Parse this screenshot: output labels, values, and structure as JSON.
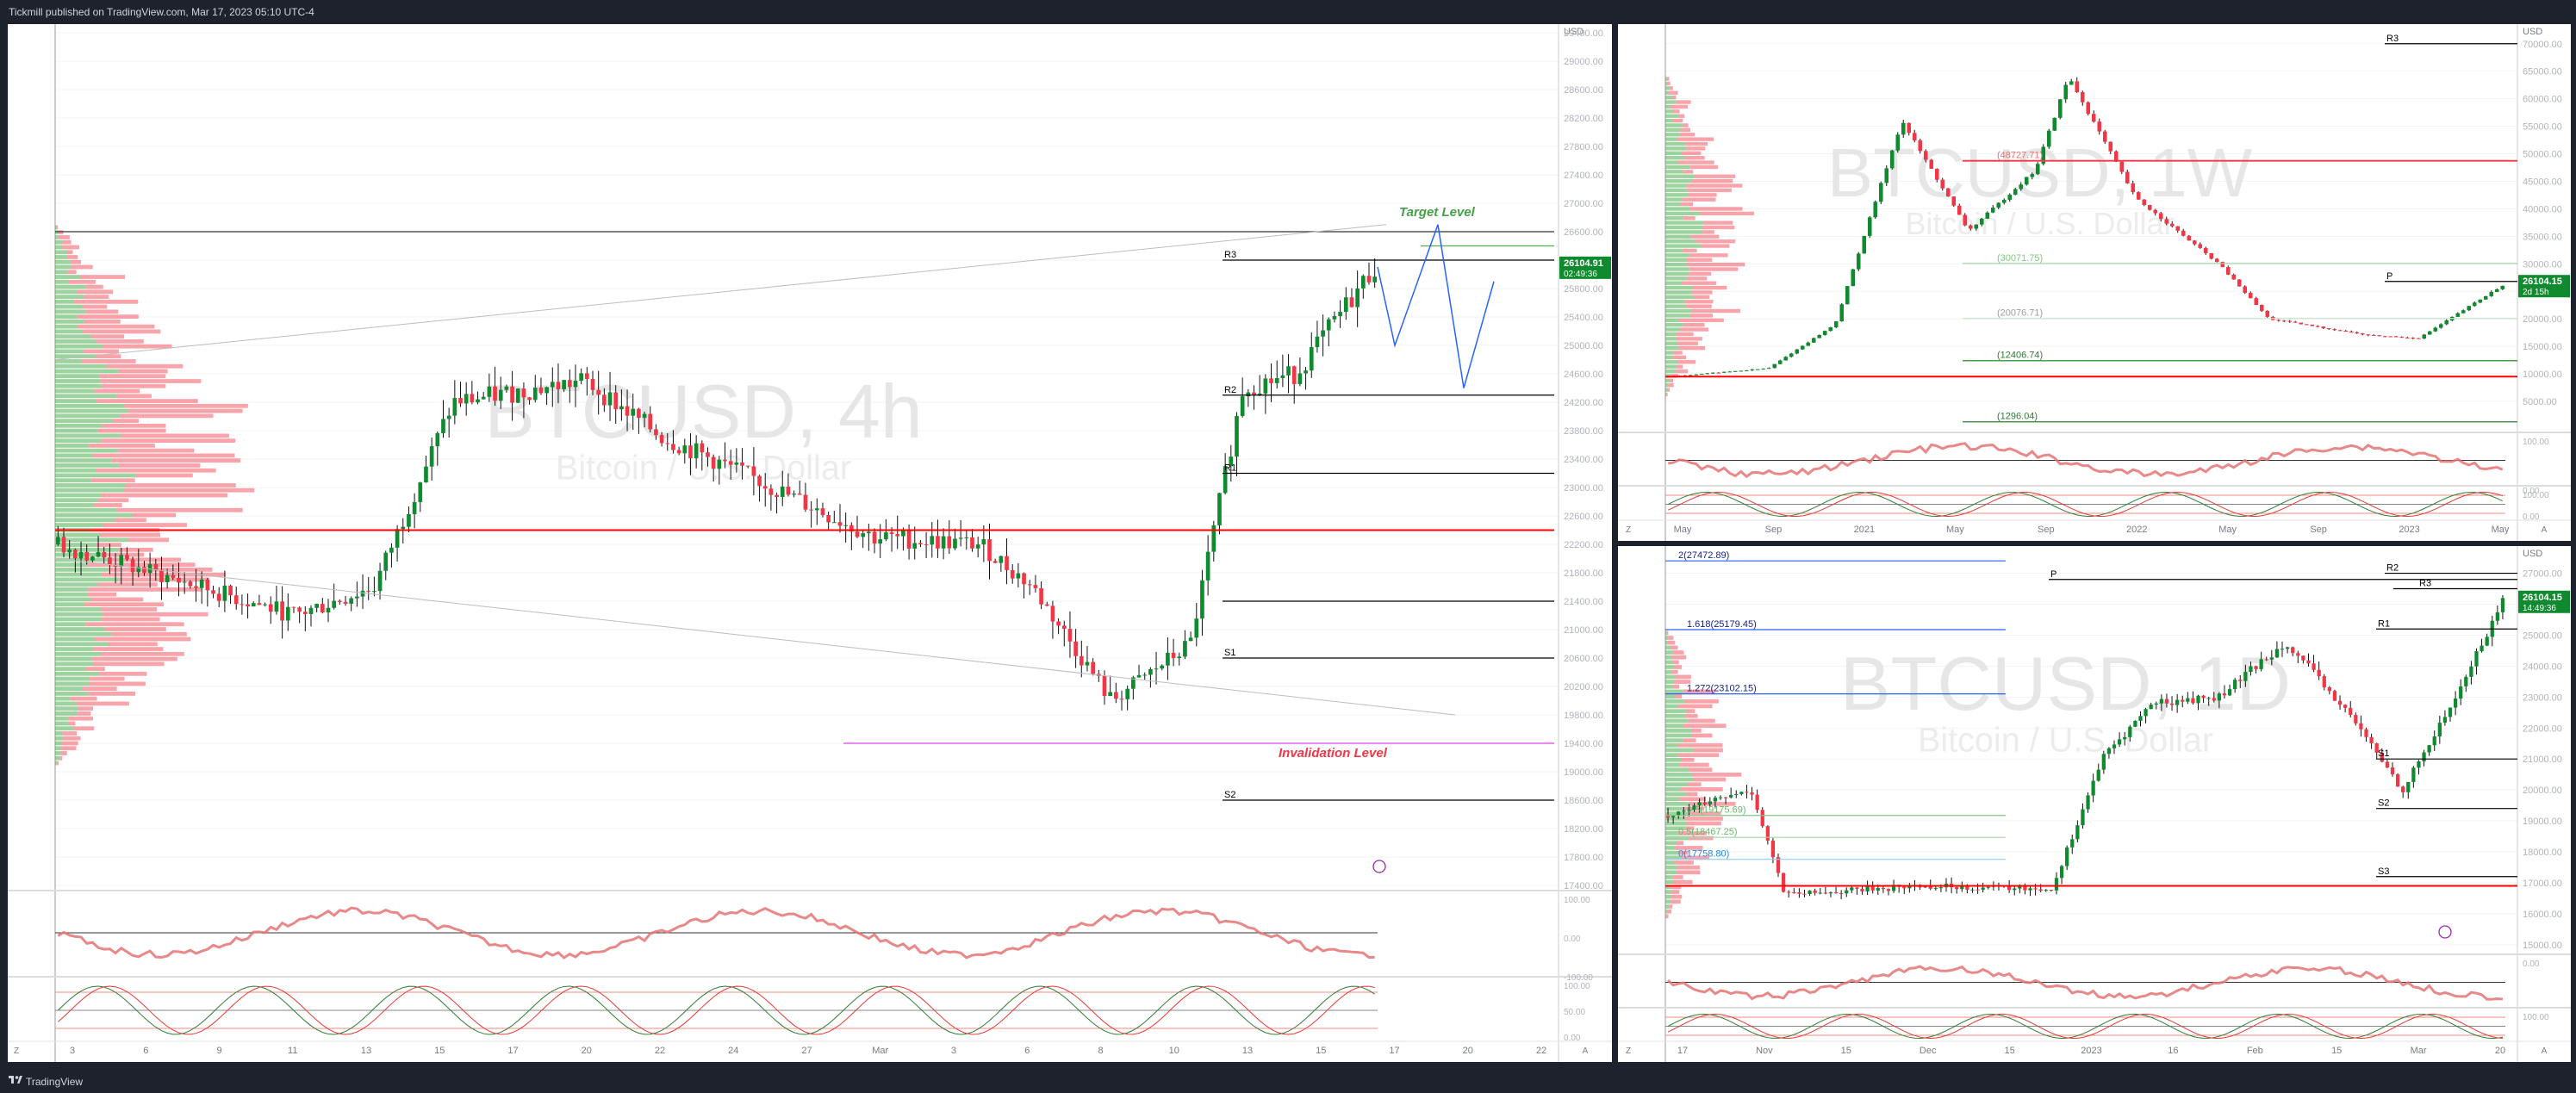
{
  "header": {
    "publisher": "Tickmill published on TradingView.com, Mar 17, 2023 05:10 UTC-4"
  },
  "footer": {
    "brand": "TradingView",
    "logo_icon": "tradingview-logo-icon"
  },
  "colors": {
    "up": "#089981",
    "up_volume": "#4caf50",
    "down": "#f23645",
    "price_tag": "#0f8a2f",
    "target": "#43a047",
    "invalidation": "#f23645",
    "projection": "#2962ff",
    "pivot_line": "#000000",
    "support_red": "#ff0000",
    "magenta": "#e040fb"
  },
  "charts": [
    {
      "id": "main",
      "watermark_symbol": "BTCUSD, 4h",
      "watermark_name": "Bitcoin / U.S. Dollar",
      "currency": "USD",
      "price_label": "26104.91",
      "countdown": "02:49:36",
      "annotations": [
        "Target Level",
        "Invalidation Level"
      ],
      "pivot_labels": [
        "R3",
        "R2",
        "R1",
        "S1",
        "S2"
      ],
      "y_ticks": [
        "29400.00",
        "29000.00",
        "28600.00",
        "28200.00",
        "27800.00",
        "27400.00",
        "27000.00",
        "26600.00",
        "26200.00",
        "25800.00",
        "25400.00",
        "25000.00",
        "24600.00",
        "24200.00",
        "23800.00",
        "23400.00",
        "23000.00",
        "22600.00",
        "22200.00",
        "21800.00",
        "21400.00",
        "21000.00",
        "20600.00",
        "20200.00",
        "19800.00",
        "19400.00",
        "19000.00",
        "18600.00",
        "18200.00",
        "17800.00",
        "17400.00"
      ],
      "x_ticks": [
        "3",
        "6",
        "9",
        "11",
        "13",
        "15",
        "17",
        "20",
        "22",
        "24",
        "27",
        "Mar",
        "3",
        "6",
        "8",
        "10",
        "13",
        "15",
        "17",
        "20",
        "22"
      ],
      "rsi_ticks": [
        "100.00",
        "0.00",
        "-100.00"
      ],
      "stoch_ticks": [
        "100.00",
        "50.00",
        "0.00"
      ],
      "z_label": "Z",
      "a_label": "A"
    },
    {
      "id": "weekly",
      "watermark_symbol": "BTCUSD, 1W",
      "watermark_name": "Bitcoin / U.S. Dollar",
      "currency": "USD",
      "price_label": "26104.15",
      "countdown": "2d 15h",
      "pivot_labels": [
        "R3",
        "P"
      ],
      "level_labels": [
        "(48727.71)",
        "(30071.75)",
        "(20076.71)",
        "(12406.74)",
        "(1296.04)"
      ],
      "y_ticks": [
        "70000.00",
        "65000.00",
        "60000.00",
        "55000.00",
        "50000.00",
        "45000.00",
        "40000.00",
        "35000.00",
        "30000.00",
        "25000.00",
        "20000.00",
        "15000.00",
        "10000.00",
        "5000.00"
      ],
      "x_ticks": [
        "May",
        "Sep",
        "2021",
        "May",
        "Sep",
        "2022",
        "May",
        "Sep",
        "2023",
        "May"
      ],
      "rsi_ticks": [
        "100.00",
        "0.00"
      ],
      "stoch_ticks": [
        "100.00",
        "0.00"
      ],
      "z_label": "Z",
      "a_label": "A"
    },
    {
      "id": "hourly",
      "watermark_symbol": "BTCUSD, 1D",
      "watermark_name": "Bitcoin / U.S. Dollar",
      "currency": "USD",
      "price_label": "26104.15",
      "countdown": "14:49:36",
      "pivot_labels": [
        "R2",
        "R3",
        "R1",
        "P",
        "S1",
        "S2",
        "S3",
        "S3"
      ],
      "fib_labels": [
        "2(27472.89)",
        "1.618(25179.45)",
        "1.272(23102.15)",
        "0.5(19175.69)",
        "0.5(18467.25)",
        "0(17758.80)"
      ],
      "y_ticks": [
        "27000.00",
        "26000.00",
        "25000.00",
        "24000.00",
        "23000.00",
        "22000.00",
        "21000.00",
        "20000.00",
        "19000.00",
        "18000.00",
        "17000.00",
        "16000.00",
        "15000.00"
      ],
      "x_ticks": [
        "17",
        "Nov",
        "15",
        "Dec",
        "15",
        "2023",
        "16",
        "Feb",
        "15",
        "Mar",
        "20"
      ],
      "rsi_ticks": [
        "0.00"
      ],
      "stoch_ticks": [
        "100.00"
      ],
      "z_label": "Z",
      "a_label": "A"
    }
  ],
  "chart_data": [
    {
      "type": "candlestick",
      "title": "BTCUSD, 4h",
      "ylim": [
        17400,
        29400
      ],
      "levels": {
        "R3": 26200,
        "R2": 24300,
        "R1": 23200,
        "P": 22400,
        "S1": 20600,
        "S2": 18600,
        "target": 26600,
        "invalidation": 19400
      },
      "current_price": 26104.91,
      "projection": [
        [
          0,
          26104
        ],
        [
          1,
          25000
        ],
        [
          2,
          26700
        ],
        [
          3,
          24400
        ],
        [
          4,
          25900
        ]
      ]
    },
    {
      "type": "candlestick",
      "title": "BTCUSD, 1W",
      "ylim": [
        0,
        72000
      ],
      "levels": {
        "R3": 70000,
        "level1": 48727.71,
        "level2": 30071.75,
        "level3": 20076.71,
        "level4": 12406.74,
        "level5": 1296.04
      },
      "current_price": 26104.15
    },
    {
      "type": "candlestick",
      "title": "BTCUSD, 1D",
      "ylim": [
        14800,
        27600
      ],
      "levels": {
        "R2": 27000,
        "R3": 26500,
        "R1": 25200,
        "P": 26800,
        "S1": 21000,
        "S2": 19400,
        "S3": 17200
      },
      "fib": [
        27472.89,
        25179.45,
        23102.15,
        19175.69,
        18467.25,
        17758.8
      ],
      "current_price": 26104.15
    }
  ]
}
